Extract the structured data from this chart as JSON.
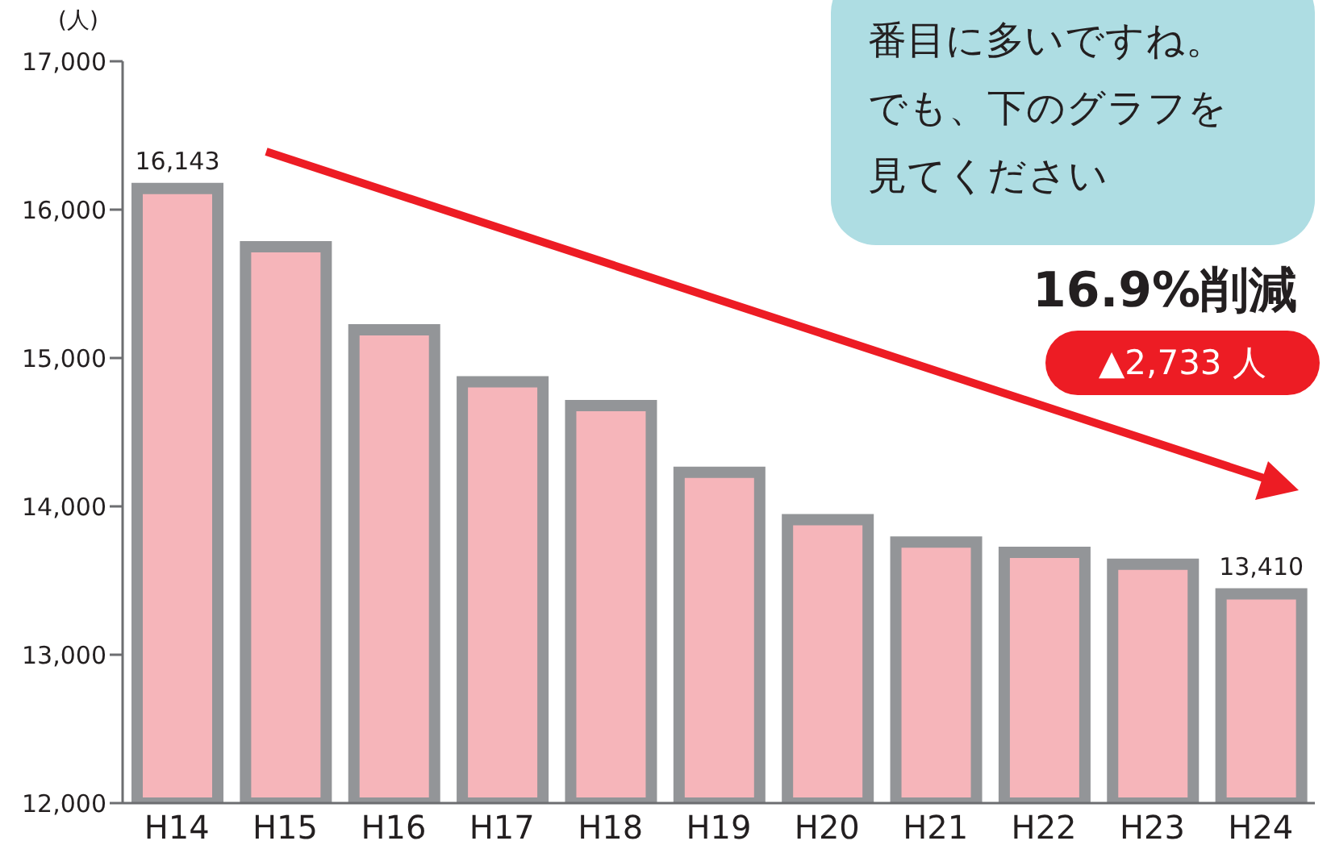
{
  "chart_data": {
    "type": "bar",
    "ylabel": "(人)",
    "categories": [
      "H14",
      "H15",
      "H16",
      "H17",
      "H18",
      "H19",
      "H20",
      "H21",
      "H22",
      "H23",
      "H24"
    ],
    "series": [
      {
        "color": "#f6b5ba",
        "values": [
          16143,
          15750,
          15190,
          14840,
          14680,
          14230,
          13910,
          13760,
          13690,
          13610,
          13410
        ],
        "value_labels": [
          "16,143",
          null,
          null,
          null,
          null,
          null,
          null,
          null,
          null,
          null,
          "13,410"
        ]
      }
    ],
    "ylim": [
      12000,
      17000
    ],
    "yticks": [
      {
        "value": 12000,
        "label": "12,000"
      },
      {
        "value": 13000,
        "label": "13,000"
      },
      {
        "value": 14000,
        "label": "14,000"
      },
      {
        "value": 15000,
        "label": "15,000"
      },
      {
        "value": 16000,
        "label": "16,000"
      },
      {
        "value": 17000,
        "label": "17,000"
      }
    ],
    "annotations": [
      "番目に多いですね。",
      "でも、下のグラフを",
      "見てください",
      "16.9%削減",
      "▲2,733 人"
    ]
  }
}
